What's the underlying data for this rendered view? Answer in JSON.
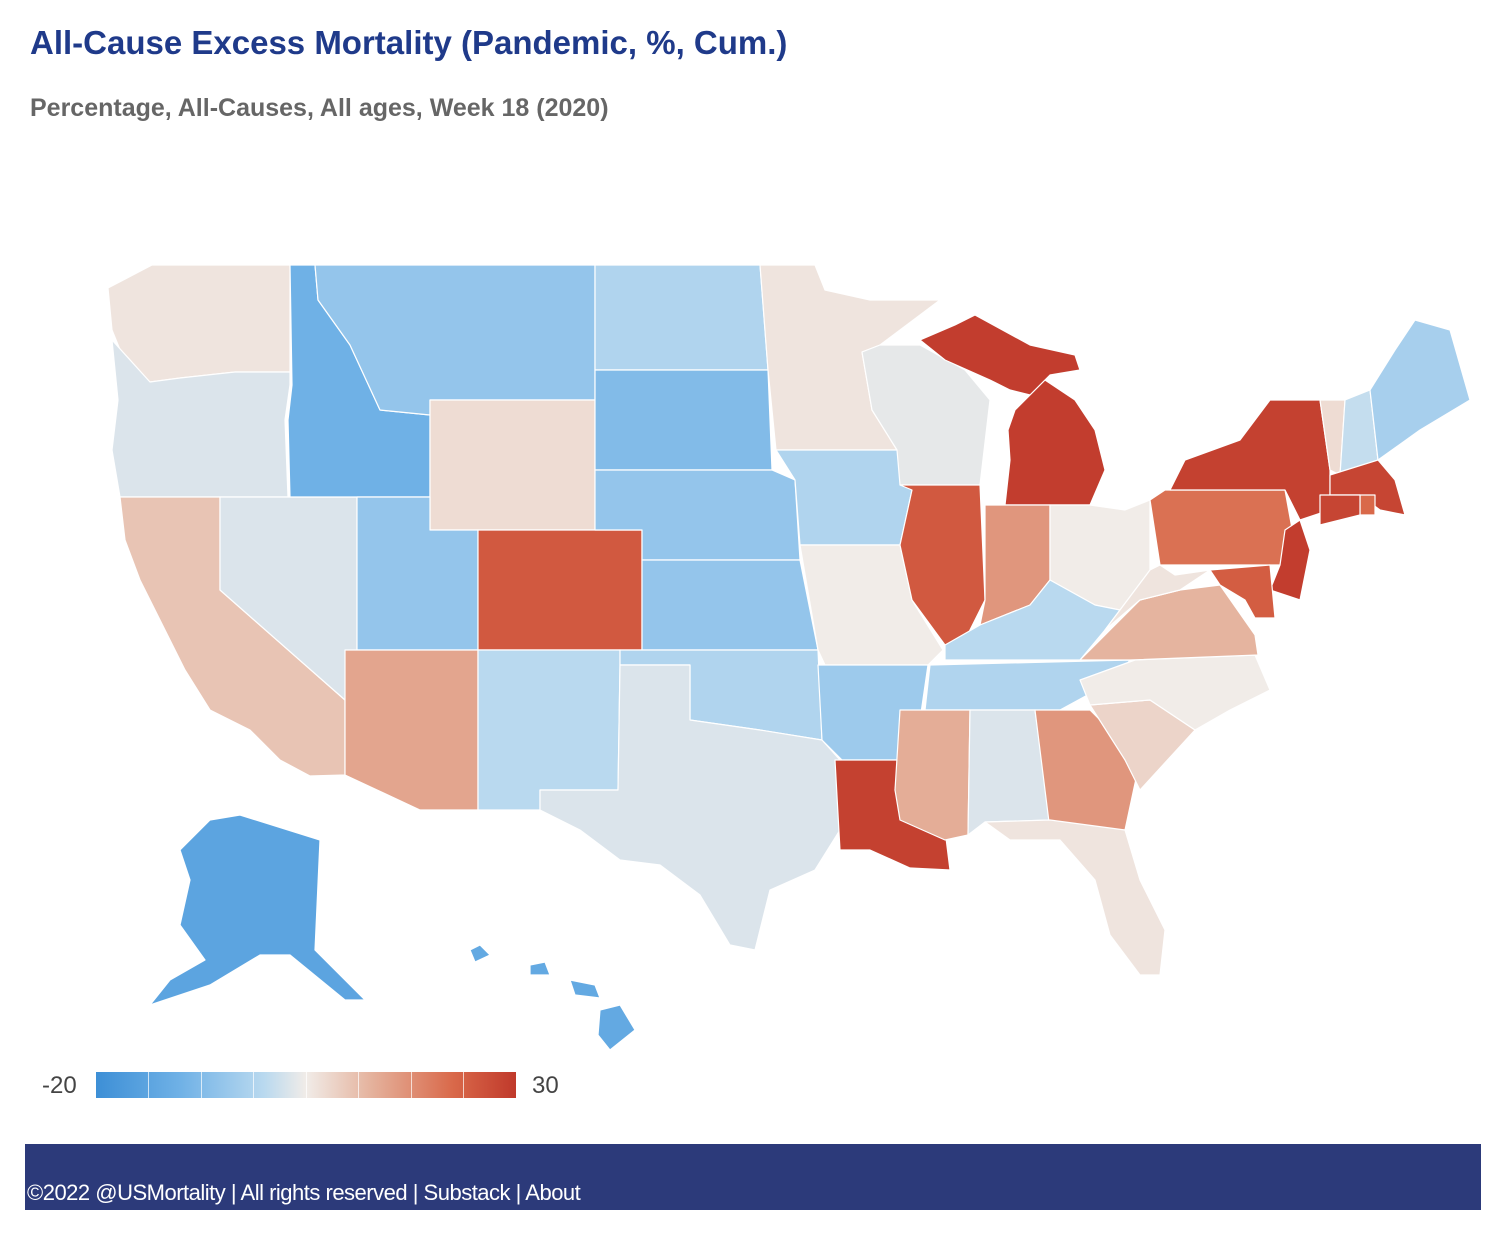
{
  "header": {
    "title": "All-Cause Excess Mortality (Pandemic, %, Cum.)",
    "subtitle": "Percentage, All-Causes, All ages, Week 18 (2020)"
  },
  "legend": {
    "min_label": "-20",
    "max_label": "30",
    "min": -20,
    "max": 30
  },
  "colors": {
    "scale": [
      "#3d8fd6",
      "#6fb1e6",
      "#b9d9ef",
      "#f1ece8",
      "#e5b49f",
      "#d9694a",
      "#c0392b"
    ],
    "footer_bg": "#2c3a7a",
    "title": "#1f3a8a"
  },
  "map_data": {
    "metric": "All-cause excess mortality, cumulative %",
    "states": [
      {
        "code": "WA",
        "value": 2
      },
      {
        "code": "OR",
        "value": -1
      },
      {
        "code": "CA",
        "value": 6
      },
      {
        "code": "NV",
        "value": -1
      },
      {
        "code": "ID",
        "value": -12
      },
      {
        "code": "MT",
        "value": -8
      },
      {
        "code": "WY",
        "value": 3
      },
      {
        "code": "UT",
        "value": -8
      },
      {
        "code": "AZ",
        "value": 10
      },
      {
        "code": "CO",
        "value": 22
      },
      {
        "code": "NM",
        "value": -4
      },
      {
        "code": "ND",
        "value": -5
      },
      {
        "code": "SD",
        "value": -10
      },
      {
        "code": "NE",
        "value": -8
      },
      {
        "code": "KS",
        "value": -8
      },
      {
        "code": "OK",
        "value": -5
      },
      {
        "code": "TX",
        "value": -1
      },
      {
        "code": "MN",
        "value": 2
      },
      {
        "code": "IA",
        "value": -5
      },
      {
        "code": "MO",
        "value": 1
      },
      {
        "code": "AR",
        "value": -7
      },
      {
        "code": "LA",
        "value": 28
      },
      {
        "code": "WI",
        "value": 0
      },
      {
        "code": "IL",
        "value": 22
      },
      {
        "code": "MI",
        "value": 29
      },
      {
        "code": "IN",
        "value": 12
      },
      {
        "code": "OH",
        "value": 1
      },
      {
        "code": "KY",
        "value": -4
      },
      {
        "code": "TN",
        "value": -5
      },
      {
        "code": "MS",
        "value": 9
      },
      {
        "code": "AL",
        "value": -1
      },
      {
        "code": "GA",
        "value": 12
      },
      {
        "code": "FL",
        "value": 2
      },
      {
        "code": "SC",
        "value": 4
      },
      {
        "code": "NC",
        "value": 1
      },
      {
        "code": "VA",
        "value": 8
      },
      {
        "code": "WV",
        "value": 2
      },
      {
        "code": "PA",
        "value": 17
      },
      {
        "code": "NY",
        "value": 28
      },
      {
        "code": "VT",
        "value": 3
      },
      {
        "code": "NH",
        "value": -3
      },
      {
        "code": "ME",
        "value": -6
      },
      {
        "code": "MA",
        "value": 27
      },
      {
        "code": "RI",
        "value": 18
      },
      {
        "code": "CT",
        "value": 27
      },
      {
        "code": "NJ",
        "value": 29
      },
      {
        "code": "DE",
        "value": 20
      },
      {
        "code": "MD",
        "value": 21
      },
      {
        "code": "AK",
        "value": -15
      },
      {
        "code": "HI",
        "value": -14
      }
    ]
  },
  "footer": {
    "copyright": "©2022 @USMortality",
    "sep1": " | ",
    "rights": "All rights reserved",
    "sep2": " | ",
    "link_substack": "Substack",
    "sep3": " | ",
    "link_about": "About"
  }
}
